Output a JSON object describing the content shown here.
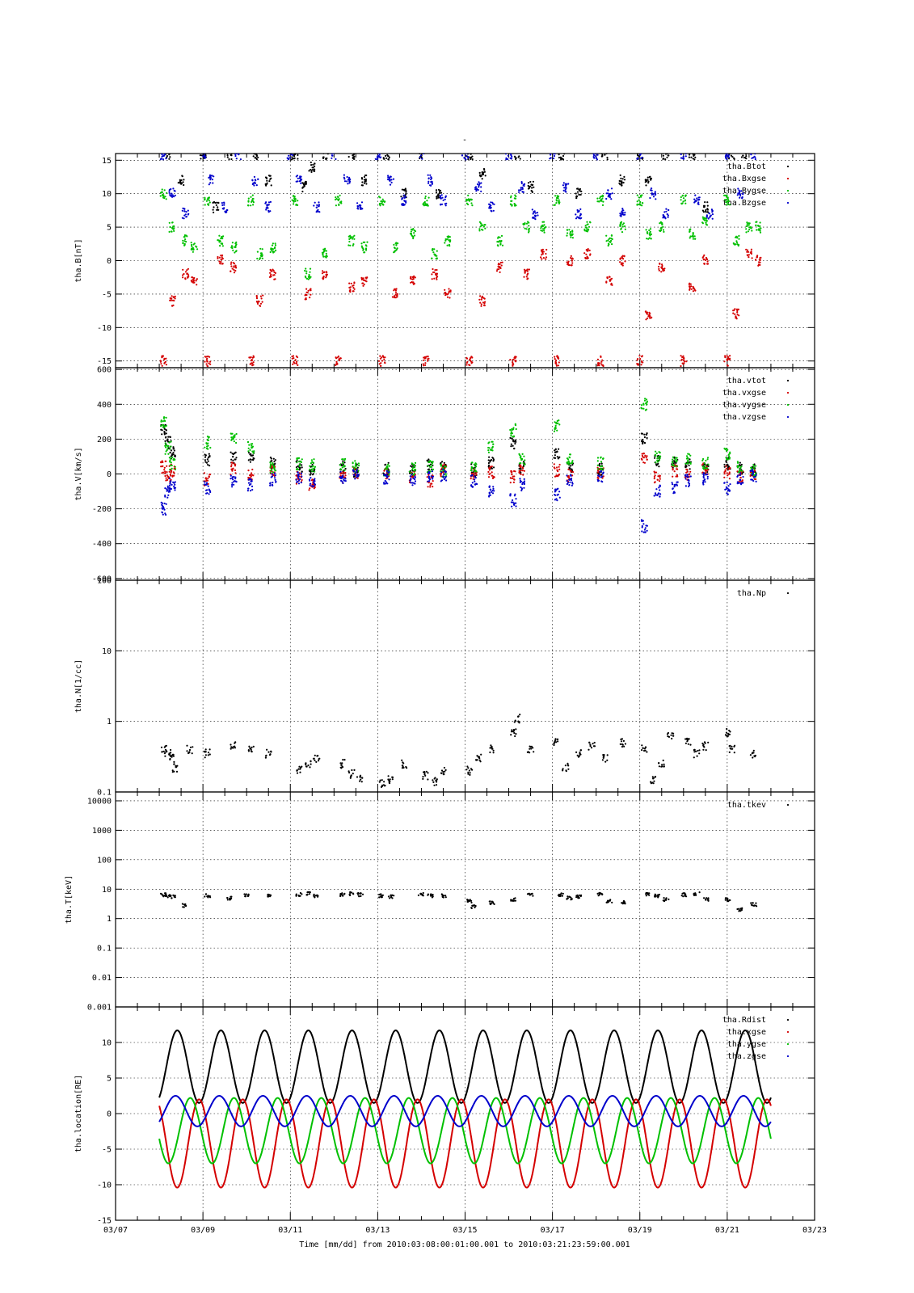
{
  "page": {
    "top_title": "-",
    "xaxis_label": "Time [mm/dd]  from 2010:03:08:00:01:00.001  to  2010:03:21:23:59:00.001"
  },
  "chart_data": [
    {
      "type": "scatter",
      "ylabel": "tha.B[nT]",
      "ylim": [
        -16,
        16
      ],
      "yticks": [
        15,
        10,
        5,
        0,
        -5,
        -10,
        -15
      ],
      "ytick_labels": [
        "15",
        "10",
        "5",
        "0",
        "-5",
        "-10",
        "-15"
      ],
      "grid": true,
      "legend": [
        "tha.Btot",
        "tha.Bxgse",
        "tha.Bygse",
        "tha.Bzgse"
      ],
      "legend_placement": "top-right",
      "series": [
        {
          "name": "tha.Btot",
          "color": "#000000",
          "x": [
            8.2,
            8.5,
            9.0,
            9.3,
            9.6,
            10.2,
            10.5,
            11.1,
            11.3,
            11.5,
            11.8,
            12.4,
            12.7,
            13.2,
            13.6,
            14.0,
            14.4,
            15.1,
            15.4,
            16.2,
            16.5,
            17.2,
            17.6,
            18.2,
            18.6,
            19.0,
            19.2,
            19.6,
            20.2,
            20.5,
            21.1,
            21.4
          ],
          "y": [
            15.9,
            12,
            15.9,
            8,
            15.9,
            15.9,
            12,
            15.9,
            11,
            14,
            15.9,
            15.9,
            12,
            15.9,
            10,
            15.9,
            10,
            15.9,
            13,
            15.9,
            11,
            15.9,
            10,
            15.9,
            12,
            15.9,
            12,
            15.9,
            15.9,
            8,
            15.9,
            15.9
          ]
        },
        {
          "name": "tha.Bxgse",
          "color": "#d40000",
          "x": [
            8.1,
            8.3,
            8.6,
            8.8,
            9.1,
            9.4,
            9.7,
            10.1,
            10.3,
            10.6,
            11.1,
            11.4,
            11.8,
            12.1,
            12.4,
            12.7,
            13.1,
            13.4,
            13.8,
            14.1,
            14.3,
            14.6,
            15.1,
            15.4,
            15.8,
            16.1,
            16.4,
            16.8,
            17.1,
            17.4,
            17.8,
            18.1,
            18.3,
            18.6,
            19.0,
            19.2,
            19.5,
            20.0,
            20.2,
            20.5,
            21.0,
            21.2,
            21.5,
            21.7
          ],
          "y": [
            -15,
            -6,
            -2,
            -3,
            -15,
            0,
            -1,
            -15,
            -6,
            -2,
            -15,
            -5,
            -2,
            -15,
            -4,
            -3,
            -15,
            -5,
            -3,
            -15,
            -2,
            -5,
            -15,
            -6,
            -1,
            -15,
            -2,
            1,
            -15,
            0,
            1,
            -15,
            -3,
            0,
            -15,
            -8,
            -1,
            -15,
            -4,
            0,
            -15,
            -8,
            1,
            0
          ]
        },
        {
          "name": "tha.Bygse",
          "color": "#00c000",
          "x": [
            8.1,
            8.3,
            8.6,
            8.8,
            9.1,
            9.4,
            9.7,
            10.1,
            10.3,
            10.6,
            11.1,
            11.4,
            11.8,
            12.1,
            12.4,
            12.7,
            13.1,
            13.4,
            13.8,
            14.1,
            14.3,
            14.6,
            15.1,
            15.4,
            15.8,
            16.1,
            16.4,
            16.8,
            17.1,
            17.4,
            17.8,
            18.1,
            18.3,
            18.6,
            19.0,
            19.2,
            19.5,
            20.0,
            20.2,
            20.5,
            21.0,
            21.2,
            21.5,
            21.7
          ],
          "y": [
            10,
            5,
            3,
            2,
            9,
            3,
            2,
            9,
            1,
            2,
            9,
            -2,
            1,
            9,
            3,
            2,
            9,
            2,
            4,
            9,
            1,
            3,
            9,
            5,
            3,
            9,
            5,
            5,
            9,
            4,
            5,
            9,
            3,
            5,
            9,
            4,
            5,
            9,
            4,
            6,
            9,
            3,
            5,
            5
          ]
        },
        {
          "name": "tha.Bzgse",
          "color": "#0000cc",
          "x": [
            8.1,
            8.3,
            8.6,
            9.0,
            9.2,
            9.5,
            9.8,
            10.2,
            10.5,
            11.0,
            11.2,
            11.6,
            12.0,
            12.3,
            12.6,
            13.0,
            13.3,
            13.6,
            14.0,
            14.2,
            14.5,
            15.0,
            15.3,
            15.6,
            16.0,
            16.3,
            16.6,
            17.0,
            17.3,
            17.6,
            18.0,
            18.3,
            18.6,
            19.0,
            19.3,
            19.6,
            20.0,
            20.3,
            20.6,
            21.0,
            21.3,
            21.6
          ],
          "y": [
            15.9,
            10,
            7,
            15.9,
            12,
            8,
            15.9,
            12,
            8,
            15.9,
            12,
            8,
            15.9,
            12,
            8,
            15.9,
            12,
            9,
            15.9,
            12,
            9,
            15.9,
            11,
            8,
            15.9,
            11,
            7,
            15.9,
            11,
            7,
            15.9,
            10,
            7,
            15.9,
            10,
            7,
            15.9,
            9,
            7,
            15.9,
            10,
            15.9
          ]
        }
      ]
    },
    {
      "type": "scatter",
      "ylabel": "tha.V[km/s]",
      "ylim": [
        -610,
        610
      ],
      "yticks": [
        600,
        400,
        200,
        0,
        -200,
        -400,
        -600
      ],
      "ytick_labels": [
        "600",
        "400",
        "200",
        "0",
        "-200",
        "-400",
        "-600"
      ],
      "grid": true,
      "legend": [
        "tha.vtot",
        "tha.vxgse",
        "tha.vygse",
        "tha.vzgse"
      ],
      "legend_placement": "top-right",
      "series": [
        {
          "name": "tha.vtot",
          "color": "#000000",
          "x": [
            8.1,
            8.2,
            8.3,
            9.1,
            9.7,
            10.1,
            10.6,
            11.2,
            11.5,
            12.2,
            12.5,
            13.2,
            13.8,
            14.2,
            14.5,
            15.2,
            15.6,
            16.1,
            16.3,
            17.1,
            17.4,
            18.1,
            19.1,
            19.4,
            19.8,
            20.1,
            20.5,
            21.0,
            21.3,
            21.6
          ],
          "y": [
            250,
            180,
            120,
            80,
            90,
            100,
            60,
            40,
            30,
            40,
            20,
            30,
            20,
            50,
            40,
            20,
            60,
            180,
            40,
            120,
            40,
            30,
            200,
            70,
            60,
            50,
            40,
            60,
            30,
            20
          ]
        },
        {
          "name": "tha.vxgse",
          "color": "#d40000",
          "x": [
            8.1,
            8.2,
            8.3,
            9.1,
            9.7,
            10.1,
            10.6,
            11.2,
            11.5,
            12.2,
            12.5,
            13.2,
            13.8,
            14.2,
            14.5,
            15.2,
            15.6,
            16.1,
            16.3,
            17.1,
            17.4,
            18.1,
            19.1,
            19.4,
            19.8,
            20.1,
            20.5,
            21.0,
            21.3,
            21.6
          ],
          "y": [
            40,
            -10,
            20,
            -30,
            30,
            -10,
            20,
            -20,
            -60,
            -20,
            10,
            10,
            -20,
            -40,
            20,
            0,
            10,
            -20,
            30,
            20,
            -10,
            0,
            100,
            -20,
            20,
            0,
            30,
            10,
            -10,
            0
          ]
        },
        {
          "name": "tha.vygse",
          "color": "#00c000",
          "x": [
            8.1,
            8.2,
            8.3,
            9.1,
            9.7,
            10.1,
            10.6,
            11.2,
            11.5,
            12.2,
            12.5,
            13.2,
            13.8,
            14.2,
            14.5,
            15.2,
            15.6,
            16.1,
            16.3,
            17.1,
            17.4,
            18.1,
            19.1,
            19.4,
            19.8,
            20.1,
            20.5,
            21.0,
            21.3,
            21.6
          ],
          "y": [
            300,
            150,
            60,
            180,
            200,
            150,
            40,
            60,
            50,
            50,
            40,
            20,
            30,
            40,
            20,
            30,
            150,
            250,
            80,
            280,
            80,
            60,
            400,
            100,
            80,
            80,
            60,
            120,
            40,
            20
          ]
        },
        {
          "name": "tha.vzgse",
          "color": "#0000cc",
          "x": [
            8.1,
            8.2,
            8.3,
            9.1,
            9.7,
            10.1,
            10.6,
            11.2,
            11.5,
            12.2,
            12.5,
            13.2,
            13.8,
            14.2,
            14.5,
            15.2,
            15.6,
            16.1,
            16.3,
            17.1,
            17.4,
            18.1,
            19.1,
            19.4,
            19.8,
            20.1,
            20.5,
            21.0,
            21.3,
            21.6
          ],
          "y": [
            -200,
            -100,
            -60,
            -80,
            -40,
            -60,
            -30,
            -20,
            -40,
            -20,
            -10,
            -20,
            -30,
            -20,
            -10,
            -40,
            -100,
            -150,
            -60,
            -120,
            -40,
            -20,
            -300,
            -100,
            -80,
            -40,
            -30,
            -80,
            -30,
            -10
          ]
        }
      ]
    },
    {
      "type": "scatter",
      "ylabel": "tha.N[1/cc]",
      "yscale": "log",
      "ylim": [
        0.1,
        100
      ],
      "yticks": [
        100,
        10,
        1,
        0.1
      ],
      "ytick_labels": [
        "100",
        "10",
        "1",
        "0.1"
      ],
      "grid": true,
      "legend": [
        "tha.Np"
      ],
      "legend_placement": "top-right",
      "series": [
        {
          "name": "tha.Np",
          "color": "#000000",
          "x": [
            8.1,
            8.2,
            8.3,
            8.35,
            8.7,
            9.1,
            9.7,
            10.1,
            10.5,
            11.2,
            11.4,
            11.6,
            12.2,
            12.4,
            12.6,
            13.1,
            13.3,
            13.6,
            14.1,
            14.3,
            14.5,
            15.1,
            15.3,
            15.6,
            16.1,
            16.2,
            16.5,
            17.1,
            17.3,
            17.6,
            17.9,
            18.2,
            18.6,
            19.1,
            19.3,
            19.5,
            19.7,
            20.1,
            20.3,
            20.5,
            21.0,
            21.1,
            21.6
          ],
          "y": [
            0.4,
            0.35,
            0.3,
            0.22,
            0.4,
            0.35,
            0.45,
            0.4,
            0.35,
            0.2,
            0.25,
            0.3,
            0.25,
            0.18,
            0.15,
            0.13,
            0.15,
            0.25,
            0.17,
            0.14,
            0.2,
            0.2,
            0.3,
            0.4,
            0.7,
            1.1,
            0.4,
            0.5,
            0.22,
            0.35,
            0.45,
            0.3,
            0.5,
            0.4,
            0.15,
            0.25,
            0.6,
            0.5,
            0.35,
            0.45,
            0.7,
            0.4,
            0.35
          ]
        }
      ]
    },
    {
      "type": "scatter",
      "ylabel": "tha.T[keV]",
      "yscale": "log",
      "ylim": [
        0.001,
        20000
      ],
      "yticks": [
        10000,
        1000,
        100,
        10,
        1,
        0.1,
        0.01,
        0.001
      ],
      "ytick_labels": [
        "10000",
        "1000",
        "100",
        "10",
        "1",
        "0.1",
        "0.01",
        "0.001"
      ],
      "grid": true,
      "legend": [
        "tha.tkev"
      ],
      "legend_placement": "top-right",
      "series": [
        {
          "name": "tha.tkev",
          "color": "#000000",
          "x": [
            8.1,
            8.2,
            8.3,
            8.6,
            9.1,
            9.6,
            10.0,
            10.5,
            11.2,
            11.4,
            11.6,
            12.2,
            12.4,
            12.6,
            13.1,
            13.3,
            14.0,
            14.2,
            14.5,
            15.1,
            15.2,
            15.6,
            16.1,
            16.5,
            17.2,
            17.4,
            17.6,
            18.1,
            18.3,
            18.6,
            19.2,
            19.4,
            19.6,
            20.0,
            20.3,
            20.5,
            21.0,
            21.3,
            21.6
          ],
          "y": [
            6.5,
            6,
            5.5,
            2.8,
            6,
            5,
            6.5,
            6,
            6.5,
            7,
            6,
            6.5,
            7,
            6.5,
            6,
            5.5,
            6.5,
            6,
            6,
            4,
            2.5,
            3.5,
            4.5,
            6.5,
            6.5,
            5,
            5.5,
            6.5,
            4,
            3.5,
            6.5,
            6,
            4.5,
            6.5,
            7,
            4.5,
            4.5,
            2,
            3
          ]
        }
      ]
    },
    {
      "type": "line",
      "ylabel": "tha.location[RE]",
      "ylim": [
        -15,
        15
      ],
      "yticks": [
        10,
        5,
        0,
        -5,
        -10,
        -15
      ],
      "ytick_labels": [
        "10",
        "5",
        "0",
        "-5",
        "-10",
        "-15"
      ],
      "xlim": [
        7,
        23
      ],
      "xticks": [
        7,
        9,
        11,
        13,
        15,
        17,
        19,
        21,
        23
      ],
      "xtick_labels": [
        "03/07",
        "03/09",
        "03/11",
        "03/13",
        "03/15",
        "03/17",
        "03/19",
        "03/21",
        "03/23"
      ],
      "grid": true,
      "legend": [
        "tha.Rdist",
        "tha.xgse",
        "tha.ygse",
        "tha.zgse"
      ],
      "legend_placement": "top-right",
      "orbit_period_days": 1.0,
      "x_range": [
        8.0,
        22.0
      ],
      "series": [
        {
          "name": "tha.Rdist",
          "color": "#000000",
          "approx": "6.6 + 5*cos(phase)",
          "min": 1.5,
          "max": 11.7
        },
        {
          "name": "tha.xgse",
          "color": "#d40000",
          "approx": "-4 - 6.3*cos",
          "min": -10.5,
          "max": 1.5
        },
        {
          "name": "tha.ygse",
          "color": "#00c000",
          "approx": "-2.5 + 4.5*sin",
          "min": -7,
          "max": 2.5
        },
        {
          "name": "tha.zgse",
          "color": "#0000cc",
          "approx": "0.3 + 2.2*sin",
          "min": -1.8,
          "max": 2.5
        }
      ]
    }
  ]
}
